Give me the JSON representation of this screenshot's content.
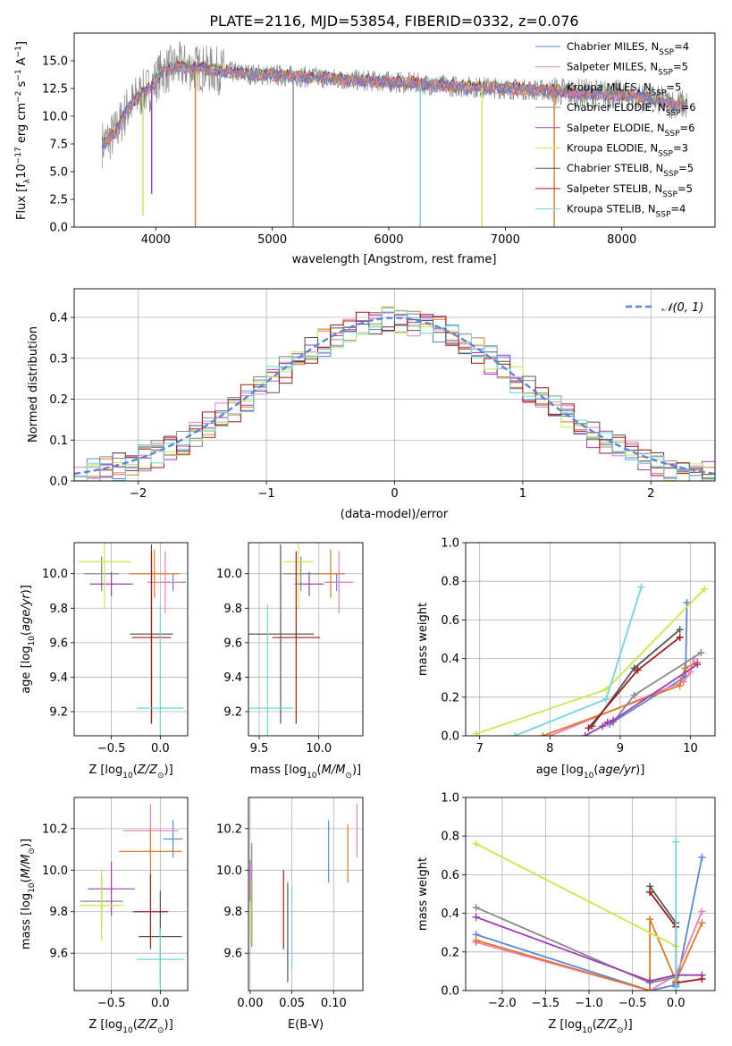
{
  "figure": {
    "title": "PLATE=2116, MJD=53854, FIBERID=0332, z=0.076"
  },
  "colors": {
    "chabrier_miles": "#5b86d6",
    "salpeter_miles": "#e87fc0",
    "kroupa_miles": "#e07b25",
    "chabrier_elodie": "#8a8a8a",
    "salpeter_elodie": "#9b3db5",
    "kroupa_elodie": "#c9e84a",
    "chabrier_stelib": "#555555",
    "salpeter_stelib": "#a01818",
    "kroupa_stelib": "#6fd6dc",
    "gaussian": "#5b86d6",
    "grid": "#b0b0b0"
  },
  "chart_data": [
    {
      "type": "line",
      "id": "spectrum",
      "xlabel": "wavelength [Angstrom, rest frame]",
      "ylabel": "Flux [f",
      "xlim": [
        3300,
        8800
      ],
      "ylim": [
        0,
        17.5
      ],
      "xticks": [
        4000,
        5000,
        6000,
        7000,
        8000
      ],
      "yticks": [
        0.0,
        2.5,
        5.0,
        7.5,
        10.0,
        12.5,
        15.0
      ],
      "legend_position": "upper right",
      "series": [
        {
          "name": "Chabrier MILES, N",
          "nssp": "4"
        },
        {
          "name": "Salpeter MILES, N",
          "nssp": "5"
        },
        {
          "name": "Kroupa MILES, N",
          "nssp": "5"
        },
        {
          "name": "Chabrier ELODIE, N",
          "nssp": "6"
        },
        {
          "name": "Salpeter ELODIE, N",
          "nssp": "6"
        },
        {
          "name": "Kroupa ELODIE, N",
          "nssp": "3"
        },
        {
          "name": "Chabrier STELIB, N",
          "nssp": "5"
        },
        {
          "name": "Salpeter STELIB, N",
          "nssp": "5"
        },
        {
          "name": "Kroupa STELIB, N",
          "nssp": "4"
        }
      ],
      "data_curve_x": [
        3550,
        3650,
        3750,
        3850,
        3950,
        4050,
        4200,
        4400,
        4600,
        4800,
        5000,
        5200,
        5400,
        5600,
        5800,
        6000,
        6200,
        6400,
        6600,
        6800,
        7000,
        7200,
        7400,
        7600,
        7800,
        8000,
        8200,
        8400,
        8550
      ],
      "data_curve_y": [
        7.5,
        8.5,
        10.5,
        11.8,
        12.5,
        14.0,
        14.5,
        14.3,
        14.0,
        13.8,
        13.7,
        13.6,
        13.5,
        13.3,
        13.2,
        13.1,
        13.0,
        12.8,
        12.7,
        12.6,
        12.5,
        12.4,
        12.3,
        12.1,
        12.0,
        11.9,
        11.7,
        11.2,
        11.0
      ],
      "dips": [
        {
          "x": 3890,
          "y": 1.0,
          "series": 5
        },
        {
          "x": 3965,
          "y": 3.0,
          "series": 4
        },
        {
          "x": 4340,
          "y": 0.0,
          "series": 2
        },
        {
          "x": 5180,
          "y": 0.0,
          "series": 3
        },
        {
          "x": 6270,
          "y": 0.0,
          "series": 8
        },
        {
          "x": 6800,
          "y": 0.0,
          "series": 5
        },
        {
          "x": 7420,
          "y": 0.0,
          "series": 2
        },
        {
          "x": 8180,
          "y": 12.5,
          "series": 0
        }
      ]
    },
    {
      "type": "histogram",
      "id": "residuals",
      "xlabel": "(data-model)/error",
      "ylabel": "Normed distribution",
      "xlim": [
        -2.5,
        2.5
      ],
      "ylim": [
        0,
        0.47
      ],
      "xticks": [
        -2,
        -1,
        0,
        1,
        2
      ],
      "yticks": [
        0.0,
        0.1,
        0.2,
        0.3,
        0.4
      ],
      "bin_width": 0.1,
      "legend_label": "𝒩(0, 1)",
      "legend_position": "upper right"
    },
    {
      "type": "errorbar",
      "id": "age_vs_Z",
      "xlabel": "Z [log",
      "ylabel": "age  [log",
      "xlim": [
        -0.88,
        0.28
      ],
      "ylim": [
        9.06,
        10.18
      ],
      "xticks": [
        -0.5,
        0.0
      ],
      "yticks": [
        9.2,
        9.4,
        9.6,
        9.8,
        10.0
      ],
      "points": [
        {
          "s": 0,
          "x": 0.13,
          "y": 9.95,
          "xe": 0.13,
          "ye": 0.05
        },
        {
          "s": 1,
          "x": 0.05,
          "y": 9.95,
          "xe": 0.18,
          "ye": 0.18
        },
        {
          "s": 2,
          "x": -0.06,
          "y": 10.0,
          "xe": 0.26,
          "ye": 0.14
        },
        {
          "s": 3,
          "x": -0.6,
          "y": 10.0,
          "xe": 0.18,
          "ye": 0.1
        },
        {
          "s": 4,
          "x": -0.5,
          "y": 9.94,
          "xe": 0.22,
          "ye": 0.07
        },
        {
          "s": 5,
          "x": -0.57,
          "y": 10.07,
          "xe": 0.27,
          "ye": 0.28
        },
        {
          "s": 6,
          "x": -0.09,
          "y": 9.65,
          "xe": 0.22,
          "ye": 0.52
        },
        {
          "s": 7,
          "x": -0.09,
          "y": 9.63,
          "xe": 0.2,
          "ye": 0.5
        },
        {
          "s": 8,
          "x": 0.0,
          "y": 9.22,
          "xe": 0.24,
          "ye": 0.6
        }
      ]
    },
    {
      "type": "errorbar",
      "id": "age_vs_mass",
      "xlabel": "mass [log",
      "ylabel": "",
      "xlim": [
        9.41,
        10.37
      ],
      "ylim": [
        9.06,
        10.18
      ],
      "xticks": [
        9.5,
        10.0
      ],
      "yticks": [
        9.2,
        9.4,
        9.6,
        9.8,
        10.0
      ],
      "points": [
        {
          "s": 0,
          "x": 10.15,
          "y": 9.95,
          "xe": 0.1,
          "ye": 0.05
        },
        {
          "s": 1,
          "x": 10.17,
          "y": 9.95,
          "xe": 0.12,
          "ye": 0.18
        },
        {
          "s": 2,
          "x": 10.1,
          "y": 10.0,
          "xe": 0.12,
          "ye": 0.14
        },
        {
          "s": 3,
          "x": 9.85,
          "y": 10.0,
          "xe": 0.15,
          "ye": 0.1
        },
        {
          "s": 4,
          "x": 9.92,
          "y": 9.94,
          "xe": 0.12,
          "ye": 0.07
        },
        {
          "s": 5,
          "x": 9.83,
          "y": 10.07,
          "xe": 0.12,
          "ye": 0.28
        },
        {
          "s": 6,
          "x": 9.68,
          "y": 9.65,
          "xe": 0.28,
          "ye": 0.52
        },
        {
          "s": 7,
          "x": 9.81,
          "y": 9.63,
          "xe": 0.2,
          "ye": 0.5
        },
        {
          "s": 8,
          "x": 9.57,
          "y": 9.22,
          "xe": 0.22,
          "ye": 0.6
        }
      ]
    },
    {
      "type": "line",
      "id": "massweight_vs_age",
      "xlabel": "age  [log",
      "ylabel": "mass weight",
      "xlim": [
        6.8,
        10.35
      ],
      "ylim": [
        0,
        1.0
      ],
      "xticks": [
        7,
        8,
        9,
        10
      ],
      "yticks": [
        0.0,
        0.2,
        0.4,
        0.6,
        0.8,
        1.0
      ],
      "series": [
        {
          "s": 0,
          "x": [
            8.85,
            9.9,
            9.93,
            9.95
          ],
          "y": [
            0.06,
            0.3,
            0.31,
            0.69
          ]
        },
        {
          "s": 1,
          "x": [
            8.0,
            9.9,
            10.0,
            10.05
          ],
          "y": [
            0.0,
            0.28,
            0.33,
            0.4
          ]
        },
        {
          "s": 2,
          "x": [
            7.9,
            9.85,
            9.92,
            10.1
          ],
          "y": [
            0.0,
            0.26,
            0.35,
            0.38
          ]
        },
        {
          "s": 3,
          "x": [
            8.9,
            9.2,
            10.15
          ],
          "y": [
            0.07,
            0.21,
            0.43
          ]
        },
        {
          "s": 4,
          "x": [
            8.5,
            8.75,
            8.82,
            8.9,
            10.1
          ],
          "y": [
            0.0,
            0.05,
            0.07,
            0.08,
            0.37
          ]
        },
        {
          "s": 5,
          "x": [
            6.95,
            8.8,
            10.2
          ],
          "y": [
            0.01,
            0.24,
            0.76
          ]
        },
        {
          "s": 6,
          "x": [
            8.6,
            9.2,
            9.85
          ],
          "y": [
            0.05,
            0.35,
            0.55
          ]
        },
        {
          "s": 7,
          "x": [
            8.55,
            9.25,
            9.85
          ],
          "y": [
            0.04,
            0.34,
            0.51
          ]
        },
        {
          "s": 8,
          "x": [
            7.5,
            8.8,
            9.3
          ],
          "y": [
            0.0,
            0.19,
            0.77
          ]
        }
      ]
    },
    {
      "type": "errorbar",
      "id": "mass_vs_Z",
      "xlabel": "Z [log",
      "ylabel": "mass [log",
      "xlim": [
        -0.88,
        0.28
      ],
      "ylim": [
        9.42,
        10.35
      ],
      "xticks": [
        -0.5,
        0.0
      ],
      "yticks": [
        9.6,
        9.8,
        10.0,
        10.2
      ],
      "points": [
        {
          "s": 0,
          "x": 0.13,
          "y": 10.15,
          "xe": 0.1,
          "ye": 0.09
        },
        {
          "s": 1,
          "x": -0.1,
          "y": 10.19,
          "xe": 0.28,
          "ye": 0.13
        },
        {
          "s": 2,
          "x": -0.1,
          "y": 10.09,
          "xe": 0.32,
          "ye": 0.12
        },
        {
          "s": 3,
          "x": -0.6,
          "y": 9.85,
          "xe": 0.22,
          "ye": 0.12
        },
        {
          "s": 4,
          "x": -0.5,
          "y": 9.91,
          "xe": 0.24,
          "ye": 0.13
        },
        {
          "s": 5,
          "x": -0.6,
          "y": 9.83,
          "xe": 0.22,
          "ye": 0.17
        },
        {
          "s": 6,
          "x": 0.0,
          "y": 9.68,
          "xe": 0.22,
          "ye": 0.22
        },
        {
          "s": 7,
          "x": -0.1,
          "y": 9.8,
          "xe": 0.18,
          "ye": 0.18
        },
        {
          "s": 8,
          "x": 0.0,
          "y": 9.57,
          "xe": 0.24,
          "ye": 0.15
        }
      ]
    },
    {
      "type": "errorbar",
      "id": "mass_vs_ebv",
      "xlabel": "E(B-V)",
      "ylabel": "",
      "xlim": [
        -0.002,
        0.135
      ],
      "ylim": [
        9.42,
        10.35
      ],
      "xticks": [
        0.0,
        0.05,
        0.1
      ],
      "yticks": [
        9.6,
        9.8,
        10.0,
        10.2
      ],
      "points": [
        {
          "s": 0,
          "x": 0.094,
          "y": 10.09,
          "xe": 0,
          "ye": 0.15
        },
        {
          "s": 1,
          "x": 0.128,
          "y": 10.19,
          "xe": 0,
          "ye": 0.13
        },
        {
          "s": 2,
          "x": 0.117,
          "y": 10.08,
          "xe": 0,
          "ye": 0.14
        },
        {
          "s": 3,
          "x": 0.002,
          "y": 9.88,
          "xe": 0,
          "ye": 0.25
        },
        {
          "s": 4,
          "x": 0.0,
          "y": 9.95,
          "xe": 0,
          "ye": 0.1
        },
        {
          "s": 5,
          "x": 0.001,
          "y": 9.8,
          "xe": 0,
          "ye": 0.15
        },
        {
          "s": 6,
          "x": 0.045,
          "y": 9.7,
          "xe": 0,
          "ye": 0.24
        },
        {
          "s": 7,
          "x": 0.04,
          "y": 9.81,
          "xe": 0,
          "ye": 0.19
        },
        {
          "s": 8,
          "x": 0.05,
          "y": 9.72,
          "xe": 0,
          "ye": 0.2
        }
      ]
    },
    {
      "type": "line",
      "id": "massweight_vs_Z",
      "xlabel": "Z [log",
      "ylabel": "mass weight",
      "xlim": [
        -2.42,
        0.45
      ],
      "ylim": [
        0,
        1.0
      ],
      "xticks": [
        -2.0,
        -1.5,
        -1.0,
        -0.5,
        0.0
      ],
      "yticks": [
        0.0,
        0.2,
        0.4,
        0.6,
        0.8,
        1.0
      ],
      "series": [
        {
          "s": 0,
          "x": [
            -2.3,
            -0.3,
            0.0,
            0.0,
            0.3
          ],
          "y": [
            0.29,
            0.0,
            0.03,
            0.02,
            0.69
          ]
        },
        {
          "s": 1,
          "x": [
            -2.3,
            -0.3,
            0.0,
            0.3
          ],
          "y": [
            0.25,
            0.0,
            0.08,
            0.41
          ]
        },
        {
          "s": 2,
          "x": [
            -2.3,
            -0.3,
            -0.3,
            0.0,
            0.3
          ],
          "y": [
            0.26,
            0.0,
            0.37,
            0.05,
            0.35
          ]
        },
        {
          "s": 3,
          "x": [
            -2.3,
            -0.3,
            0.0
          ],
          "y": [
            0.43,
            0.04,
            0.07
          ]
        },
        {
          "s": 4,
          "x": [
            -2.3,
            -0.3,
            0.0,
            0.3
          ],
          "y": [
            0.38,
            0.05,
            0.08,
            0.08
          ]
        },
        {
          "s": 5,
          "x": [
            -2.3,
            0.0
          ],
          "y": [
            0.76,
            0.23
          ]
        },
        {
          "s": 6,
          "x": [
            -0.3,
            0.0
          ],
          "y": [
            0.54,
            0.35
          ]
        },
        {
          "s": 7,
          "x": [
            -0.3,
            0.0,
            0.0,
            0.3
          ],
          "y": [
            0.51,
            0.33,
            0.04,
            0.06
          ]
        },
        {
          "s": 8,
          "x": [
            0.0,
            0.0
          ],
          "y": [
            0.77,
            0.0
          ]
        }
      ]
    }
  ]
}
